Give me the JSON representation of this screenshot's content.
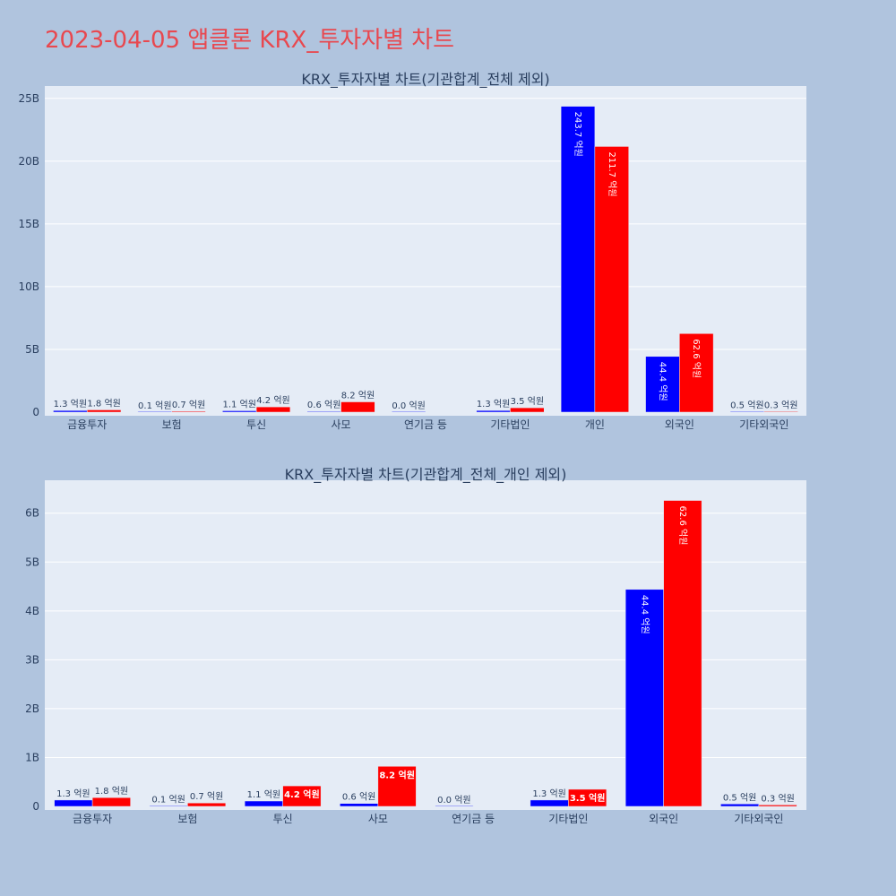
{
  "page": {
    "title": "2023-04-05 앱클론 KRX_투자자별 차트",
    "title_color": "#e8484f",
    "background": "#b0c4de"
  },
  "colors": {
    "series_a": "#0000ff",
    "series_b": "#ff0000",
    "plot_bg": "#e5ecf6"
  },
  "chart_data": [
    {
      "type": "bar",
      "title": "KRX_투자자별 차트(기관합계_전체 제외)",
      "categories": [
        "금융투자",
        "보험",
        "투신",
        "사모",
        "연기금 등",
        "기타법인",
        "개인",
        "외국인",
        "기타외국인"
      ],
      "series": [
        {
          "values": [
            130000000,
            10000000,
            110000000,
            60000000,
            0,
            130000000,
            24370000000,
            4440000000,
            50000000
          ],
          "labels": [
            "1.3 억원",
            "0.1 억원",
            "1.1 억원",
            "0.6 억원",
            "0.0 억원",
            "1.3 억원",
            "243.7 억원",
            "44.4 억원",
            "0.5 억원"
          ]
        },
        {
          "values": [
            180000000,
            70000000,
            420000000,
            820000000,
            null,
            350000000,
            21170000000,
            6260000000,
            30000000
          ],
          "labels": [
            "1.8 억원",
            "0.7 억원",
            "4.2 억원",
            "8.2 억원",
            "",
            "3.5 억원",
            "211.7 억원",
            "62.6 억원",
            "0.3 억원"
          ]
        }
      ],
      "y_ticks": [
        0,
        5000000000,
        10000000000,
        15000000000,
        20000000000,
        25000000000
      ],
      "y_tick_labels": [
        "0",
        "5B",
        "10B",
        "15B",
        "20B",
        "25B"
      ],
      "ylim": [
        0,
        25700000000
      ]
    },
    {
      "type": "bar",
      "title": "KRX_투자자별 차트(기관합계_전체_개인 제외)",
      "categories": [
        "금융투자",
        "보험",
        "투신",
        "사모",
        "연기금 등",
        "기타법인",
        "외국인",
        "기타외국인"
      ],
      "series": [
        {
          "values": [
            130000000,
            10000000,
            110000000,
            60000000,
            0,
            130000000,
            4440000000,
            50000000
          ],
          "labels": [
            "1.3 억원",
            "0.1 억원",
            "1.1 억원",
            "0.6 억원",
            "0.0 억원",
            "1.3 억원",
            "44.4 억원",
            "0.5 억원"
          ]
        },
        {
          "values": [
            180000000,
            70000000,
            420000000,
            820000000,
            null,
            350000000,
            6260000000,
            30000000
          ],
          "labels": [
            "1.8 억원",
            "0.7 억원",
            "4.2 억원",
            "8.2 억원",
            "",
            "3.5 억원",
            "62.6 억원",
            "0.3 억원"
          ]
        }
      ],
      "y_ticks": [
        0,
        1000000000,
        2000000000,
        3000000000,
        4000000000,
        5000000000,
        6000000000
      ],
      "y_tick_labels": [
        "0",
        "1B",
        "2B",
        "3B",
        "4B",
        "5B",
        "6B"
      ],
      "ylim": [
        0,
        6600000000
      ]
    }
  ]
}
